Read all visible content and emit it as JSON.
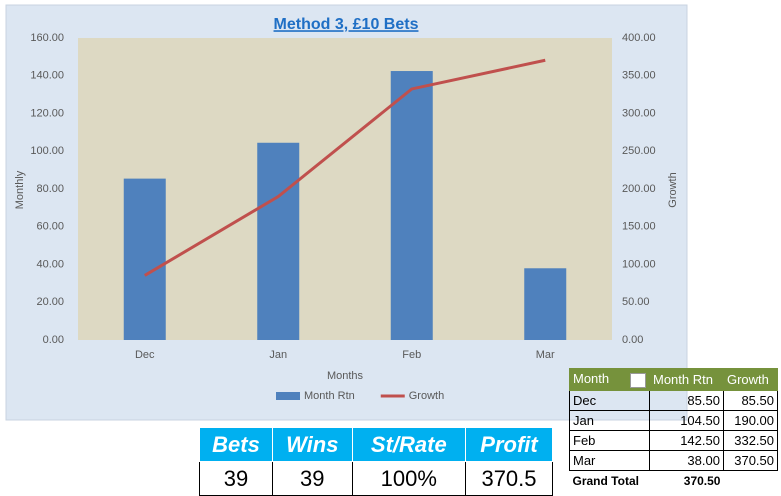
{
  "chart_data": {
    "type": "bar",
    "title": "Method 3, £10 Bets",
    "x_label": "Months",
    "y_label": "Monthly",
    "y2_label": "Growth",
    "categories": [
      "Dec",
      "Jan",
      "Feb",
      "Mar"
    ],
    "series": [
      {
        "name": "Month Rtn",
        "type": "bar",
        "color": "#4f81bd",
        "values": [
          85.5,
          104.5,
          142.5,
          38
        ]
      },
      {
        "name": "Growth",
        "type": "line",
        "axis": "y2",
        "color": "#c0504d",
        "values": [
          85.5,
          190,
          332.5,
          370.5
        ]
      }
    ],
    "ylim": [
      0,
      160
    ],
    "yticks": [
      {
        "value": 0,
        "label": "0.00"
      },
      {
        "value": 20,
        "label": "20.00"
      },
      {
        "value": 40,
        "label": "40.00"
      },
      {
        "value": 60,
        "label": "60.00"
      },
      {
        "value": 80,
        "label": "80.00"
      },
      {
        "value": 100,
        "label": "100.00"
      },
      {
        "value": 120,
        "label": "120.00"
      },
      {
        "value": 140,
        "label": "140.00"
      },
      {
        "value": 160,
        "label": "160.00"
      }
    ],
    "y2lim": [
      0,
      400
    ],
    "y2ticks": [
      {
        "value": 0,
        "label": "0.00"
      },
      {
        "value": 50,
        "label": "50.00"
      },
      {
        "value": 100,
        "label": "100.00"
      },
      {
        "value": 150,
        "label": "150.00"
      },
      {
        "value": 200,
        "label": "200.00"
      },
      {
        "value": 250,
        "label": "250.00"
      },
      {
        "value": 300,
        "label": "300.00"
      },
      {
        "value": 350,
        "label": "350.00"
      },
      {
        "value": 400,
        "label": "400.00"
      }
    ],
    "grid": false,
    "legend": "bottom"
  },
  "pivot_table": {
    "headers": [
      "Month",
      "Month Rtn",
      "Growth"
    ],
    "rows": [
      [
        "Dec",
        "85.50",
        "85.50"
      ],
      [
        "Jan",
        "104.50",
        "190.00"
      ],
      [
        "Feb",
        "142.50",
        "332.50"
      ],
      [
        "Mar",
        "38.00",
        "370.50"
      ]
    ],
    "total": [
      "Grand Total",
      "370.50"
    ]
  },
  "stats_table": {
    "headers": [
      "Bets",
      "Wins",
      "St/Rate",
      "Profit"
    ],
    "row": [
      "39",
      "39",
      "100%",
      "370.5"
    ]
  }
}
